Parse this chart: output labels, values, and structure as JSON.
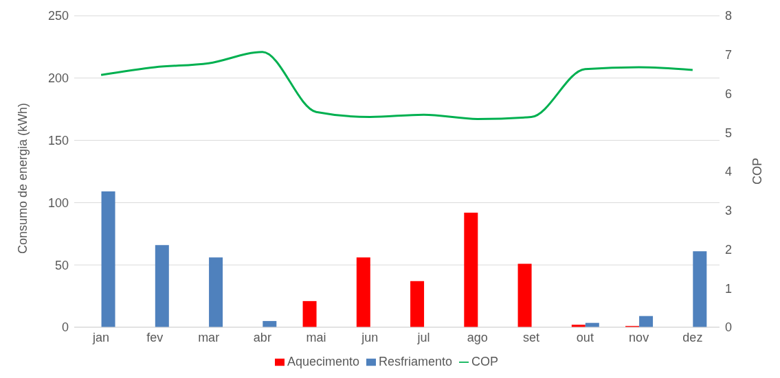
{
  "chart_data": {
    "type": "bar",
    "ylabel": "Consumo de energia (kWh)",
    "y2label": "COP",
    "categories": [
      "jan",
      "fev",
      "mar",
      "abr",
      "mai",
      "jun",
      "jul",
      "ago",
      "set",
      "out",
      "nov",
      "dez"
    ],
    "series": [
      {
        "name": "Aquecimento",
        "color": "#ff0000",
        "values": [
          0,
          0,
          0,
          0,
          21,
          56,
          37,
          92,
          51,
          2,
          1,
          0
        ]
      },
      {
        "name": "Resfriamento",
        "color": "#4f81bd",
        "values": [
          109,
          66,
          56,
          5,
          0,
          0,
          0,
          0,
          0,
          3.5,
          9,
          61
        ]
      },
      {
        "name": "COP",
        "type": "line",
        "axis": "y2",
        "color": "#00b050",
        "values": [
          6.48,
          6.68,
          6.78,
          7.07,
          5.53,
          5.4,
          5.46,
          5.35,
          5.4,
          6.63,
          6.68,
          6.61
        ]
      }
    ],
    "ylim": [
      0,
      250
    ],
    "yticks": [
      0,
      50,
      100,
      150,
      200,
      250
    ],
    "y2lim": [
      0,
      8
    ],
    "y2ticks": [
      0,
      1,
      2,
      3,
      4,
      5,
      6,
      7,
      8
    ],
    "grid": "y",
    "legend": "bottom",
    "marker": "none",
    "line_style": "solid"
  }
}
